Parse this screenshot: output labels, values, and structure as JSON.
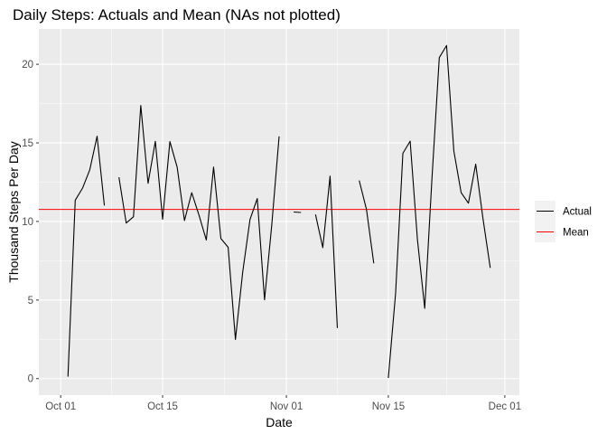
{
  "chart_data": {
    "type": "line",
    "title": "Daily Steps: Actuals and Mean (NAs not plotted)",
    "xlabel": "Date",
    "ylabel": "Thousand Steps Per Day",
    "xlim": [
      "2012-09-28",
      "2012-12-03"
    ],
    "ylim": [
      -1.05,
      22.25
    ],
    "x_ticks": [
      {
        "date": "2012-10-01",
        "label": "Oct 01"
      },
      {
        "date": "2012-10-15",
        "label": "Oct 15"
      },
      {
        "date": "2012-11-01",
        "label": "Nov 01"
      },
      {
        "date": "2012-11-15",
        "label": "Nov 15"
      },
      {
        "date": "2012-12-01",
        "label": "Dec 01"
      }
    ],
    "y_ticks": [
      {
        "value": 0,
        "label": "0"
      },
      {
        "value": 5,
        "label": "5"
      },
      {
        "value": 10,
        "label": "10"
      },
      {
        "value": 15,
        "label": "15"
      },
      {
        "value": 20,
        "label": "20"
      }
    ],
    "grid": true,
    "legend_position": "right",
    "series": [
      {
        "name": "Actual",
        "color": "#000000",
        "x": [
          "2012-10-01",
          "2012-10-02",
          "2012-10-03",
          "2012-10-04",
          "2012-10-05",
          "2012-10-06",
          "2012-10-07",
          "2012-10-08",
          "2012-10-09",
          "2012-10-10",
          "2012-10-11",
          "2012-10-12",
          "2012-10-13",
          "2012-10-14",
          "2012-10-15",
          "2012-10-16",
          "2012-10-17",
          "2012-10-18",
          "2012-10-19",
          "2012-10-20",
          "2012-10-21",
          "2012-10-22",
          "2012-10-23",
          "2012-10-24",
          "2012-10-25",
          "2012-10-26",
          "2012-10-27",
          "2012-10-28",
          "2012-10-29",
          "2012-10-30",
          "2012-10-31",
          "2012-11-01",
          "2012-11-02",
          "2012-11-03",
          "2012-11-04",
          "2012-11-05",
          "2012-11-06",
          "2012-11-07",
          "2012-11-08",
          "2012-11-09",
          "2012-11-10",
          "2012-11-11",
          "2012-11-12",
          "2012-11-13",
          "2012-11-14",
          "2012-11-15",
          "2012-11-16",
          "2012-11-17",
          "2012-11-18",
          "2012-11-19",
          "2012-11-20",
          "2012-11-21",
          "2012-11-22",
          "2012-11-23",
          "2012-11-24",
          "2012-11-25",
          "2012-11-26",
          "2012-11-27",
          "2012-11-28",
          "2012-11-29",
          "2012-11-30"
        ],
        "values": [
          null,
          0.126,
          11.352,
          12.116,
          13.294,
          15.42,
          11.015,
          null,
          12.811,
          9.9,
          10.304,
          17.382,
          12.426,
          15.098,
          10.139,
          15.084,
          13.452,
          10.056,
          11.829,
          10.395,
          8.821,
          13.46,
          8.918,
          8.355,
          2.492,
          6.778,
          10.119,
          11.458,
          5.018,
          9.819,
          15.414,
          null,
          10.6,
          10.571,
          null,
          10.439,
          8.334,
          12.883,
          3.219,
          null,
          null,
          12.608,
          10.765,
          7.336,
          null,
          0.041,
          5.441,
          14.339,
          15.11,
          8.841,
          4.472,
          12.787,
          20.427,
          21.194,
          14.478,
          11.834,
          11.162,
          13.646,
          10.183,
          7.047,
          null
        ]
      },
      {
        "name": "Mean",
        "color": "#ff0000",
        "value": 10.766
      }
    ]
  }
}
